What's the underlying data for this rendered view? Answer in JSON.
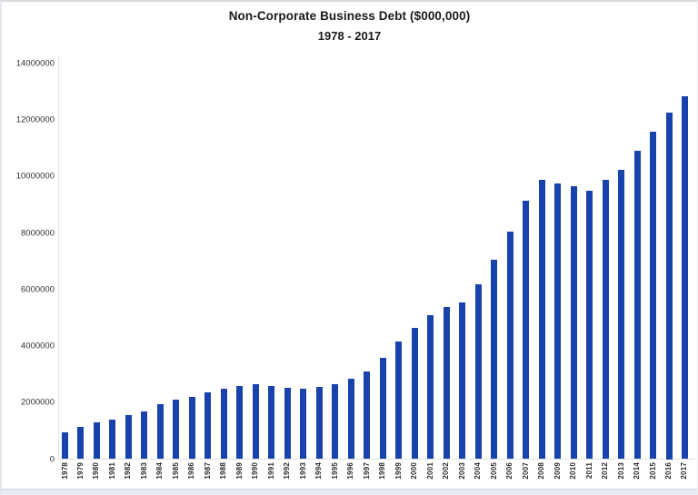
{
  "chart_data": {
    "type": "bar",
    "title": "Non-Corporate Business Debt ($000,000)",
    "subtitle": "1978 - 2017",
    "categories": [
      "1978",
      "1979",
      "1980",
      "1981",
      "1982",
      "1983",
      "1984",
      "1985",
      "1986",
      "1987",
      "1988",
      "1989",
      "1990",
      "1991",
      "1992",
      "1993",
      "1994",
      "1995",
      "1996",
      "1997",
      "1998",
      "1999",
      "2000",
      "2001",
      "2002",
      "2003",
      "2004",
      "2005",
      "2006",
      "2007",
      "2008",
      "2009",
      "2010",
      "2011",
      "2012",
      "2013",
      "2014",
      "2015",
      "2016",
      "2017"
    ],
    "values": [
      950000,
      1150000,
      1300000,
      1400000,
      1550000,
      1700000,
      1950000,
      2100000,
      2200000,
      2350000,
      2500000,
      2600000,
      2650000,
      2600000,
      2520000,
      2500000,
      2550000,
      2650000,
      2850000,
      3100000,
      3600000,
      4150000,
      4650000,
      5100000,
      5400000,
      5550000,
      6200000,
      7050000,
      8050000,
      9150000,
      9900000,
      9750000,
      9650000,
      9500000,
      9900000,
      10250000,
      10900000,
      11600000,
      12250000,
      12850000
    ],
    "xlabel": "",
    "ylabel": "",
    "ylim": [
      0,
      14000000
    ],
    "ytick_interval": 2000000,
    "yticks": [
      0,
      2000000,
      4000000,
      6000000,
      8000000,
      10000000,
      12000000,
      14000000
    ],
    "grid": false,
    "legend": false,
    "bar_color": "#1843ac",
    "axis_line_color": "#e0e0e0",
    "tick_label_color": "#333333",
    "title_color": "#1a1a1a"
  }
}
